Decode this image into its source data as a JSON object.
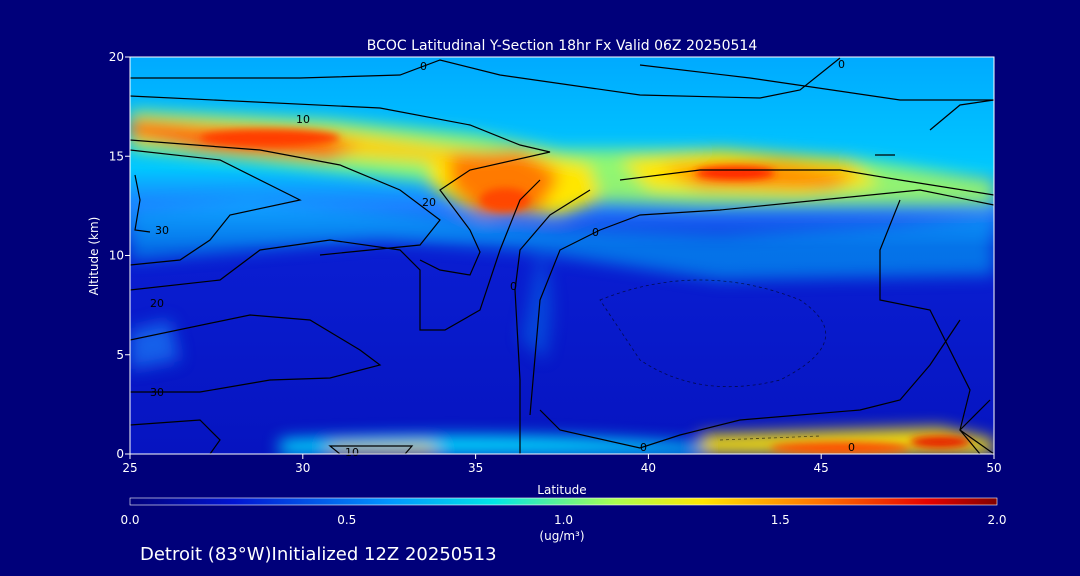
{
  "chart_data": {
    "type": "heatmap",
    "title": "BCOC Latitudinal Y-Section 18hr  Fx Valid 06Z 20250514",
    "xlabel": "Latitude",
    "ylabel": "Altitude (km)",
    "xlim": [
      25,
      50
    ],
    "ylim": [
      0,
      20
    ],
    "x_ticks": [
      "25",
      "30",
      "35",
      "40",
      "45",
      "50"
    ],
    "y_ticks": [
      "0",
      "5",
      "10",
      "15",
      "20"
    ],
    "colorbar": {
      "range": [
        0.0,
        2.0
      ],
      "ticks": [
        "0.0",
        "0.5",
        "1.0",
        "1.5",
        "2.0"
      ],
      "unit": "(ug/m³)"
    },
    "contour_labels": [
      "0",
      "0",
      "10",
      "20",
      "30",
      "20",
      "30",
      "0",
      "0",
      "10",
      "0",
      "0"
    ],
    "colors": {
      "background": "#00007a",
      "low": "#0a14c8",
      "mid": "#14c8ff",
      "high_mid": "#ffe600",
      "high": "#ff3200",
      "max": "#8c0000"
    }
  },
  "footer": "Detroit (83°W)Initialized 12Z 20250513"
}
